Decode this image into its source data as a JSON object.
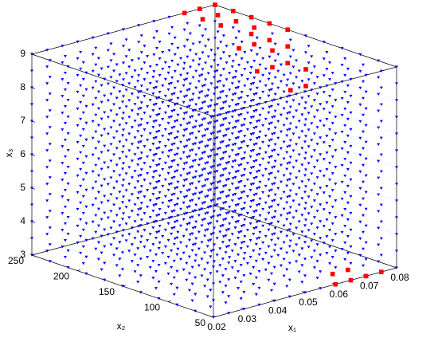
{
  "chart_data": {
    "type": "scatter3d",
    "xlabel": "x₁",
    "ylabel": "x₂",
    "zlabel": "x₃",
    "xlim": [
      0.02,
      0.08
    ],
    "ylim": [
      50,
      250
    ],
    "zlim": [
      3,
      9
    ],
    "xticks": [
      0.02,
      0.03,
      0.04,
      0.05,
      0.06,
      0.07,
      0.08
    ],
    "yticks": [
      50,
      100,
      150,
      200,
      250
    ],
    "zticks": [
      3,
      4,
      5,
      6,
      7,
      8,
      9
    ],
    "grid": true,
    "points_grid": {
      "color": "#0000ff",
      "x1": [
        0.02,
        0.025,
        0.03,
        0.035,
        0.04,
        0.045,
        0.05,
        0.055,
        0.06,
        0.065,
        0.07,
        0.075,
        0.08
      ],
      "x2": [
        50,
        70,
        90,
        110,
        130,
        150,
        170,
        190,
        210,
        230,
        250
      ],
      "x3": [
        3,
        3.5,
        4,
        4.5,
        5,
        5.5,
        6,
        6.5,
        7,
        7.5,
        8,
        8.5,
        9
      ]
    },
    "highlight": {
      "color": "#ff0000",
      "x1": [
        0.08,
        0.08,
        0.08,
        0.08,
        0.08,
        0.075,
        0.075,
        0.075,
        0.075,
        0.07,
        0.07,
        0.07,
        0.08,
        0.08,
        0.08,
        0.075,
        0.075,
        0.07,
        0.08,
        0.08,
        0.075,
        0.07,
        0.08,
        0.075,
        0.065,
        0.07,
        0.075,
        0.065,
        0.07,
        0.06
      ],
      "x2": [
        250,
        230,
        210,
        190,
        170,
        250,
        230,
        210,
        190,
        250,
        230,
        210,
        210,
        190,
        170,
        190,
        170,
        190,
        170,
        150,
        170,
        170,
        150,
        150,
        50,
        50,
        50,
        70,
        70,
        50
      ],
      "x3": [
        9,
        9,
        9,
        9,
        9,
        9,
        9,
        9,
        9,
        9,
        9,
        9,
        8.5,
        8.5,
        8.5,
        8.5,
        8.5,
        8.5,
        8,
        8,
        8,
        8,
        7.5,
        7.5,
        3,
        3,
        3,
        3,
        3,
        3
      ]
    }
  }
}
